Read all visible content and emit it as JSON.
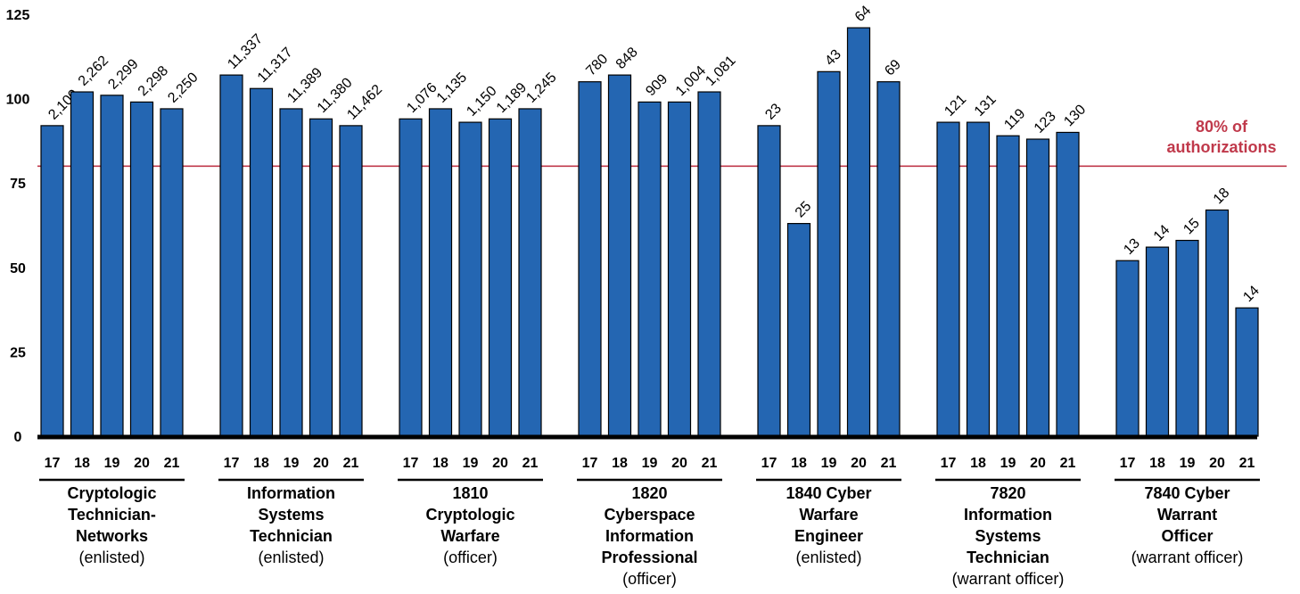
{
  "chart_data": {
    "type": "bar",
    "ylim": [
      0,
      125
    ],
    "yticks": [
      0,
      25,
      50,
      75,
      100,
      125
    ],
    "grid": false,
    "reference_line": {
      "value": 80,
      "label_lines": [
        "80% of",
        "authorizations"
      ],
      "color": "#c0394b"
    },
    "bar_color": "#2466b2",
    "groups": [
      {
        "name_lines": [
          "Cryptologic",
          "Technician-",
          "Networks"
        ],
        "sub": "(enlisted)",
        "categories": [
          "17",
          "18",
          "19",
          "20",
          "21"
        ],
        "values": [
          92,
          102,
          101,
          99,
          97
        ],
        "labels": [
          "2,100",
          "2,262",
          "2,299",
          "2,298",
          "2,250"
        ]
      },
      {
        "name_lines": [
          "Information",
          "Systems",
          "Technician"
        ],
        "sub": "(enlisted)",
        "categories": [
          "17",
          "18",
          "19",
          "20",
          "21"
        ],
        "values": [
          107,
          103,
          97,
          94,
          92
        ],
        "labels": [
          "11,337",
          "11,317",
          "11,389",
          "11,380",
          "11,462"
        ]
      },
      {
        "name_lines": [
          "1810",
          "Cryptologic",
          "Warfare"
        ],
        "sub": "(officer)",
        "categories": [
          "17",
          "18",
          "19",
          "20",
          "21"
        ],
        "values": [
          94,
          97,
          93,
          94,
          97
        ],
        "labels": [
          "1,076",
          "1,135",
          "1,150",
          "1,189",
          "1,245"
        ]
      },
      {
        "name_lines": [
          "1820",
          "Cyberspace",
          "Information",
          "Professional"
        ],
        "sub": "(officer)",
        "categories": [
          "17",
          "18",
          "19",
          "20",
          "21"
        ],
        "values": [
          105,
          107,
          99,
          99,
          102
        ],
        "labels": [
          "780",
          "848",
          "909",
          "1,004",
          "1,081"
        ]
      },
      {
        "name_lines": [
          "1840 Cyber",
          "Warfare",
          "Engineer"
        ],
        "sub": "(enlisted)",
        "categories": [
          "17",
          "18",
          "19",
          "20",
          "21"
        ],
        "values": [
          92,
          63,
          108,
          121,
          105
        ],
        "labels": [
          "23",
          "25",
          "43",
          "64",
          "69"
        ]
      },
      {
        "name_lines": [
          "7820",
          "Information",
          "Systems",
          "Technician"
        ],
        "sub": "(warrant officer)",
        "categories": [
          "17",
          "18",
          "19",
          "20",
          "21"
        ],
        "values": [
          93,
          93,
          89,
          88,
          90
        ],
        "labels": [
          "121",
          "131",
          "119",
          "123",
          "130"
        ]
      },
      {
        "name_lines": [
          "7840 Cyber",
          "Warrant",
          "Officer"
        ],
        "sub": "(warrant officer)",
        "categories": [
          "17",
          "18",
          "19",
          "20",
          "21"
        ],
        "values": [
          52,
          56,
          58,
          67,
          38
        ],
        "labels": [
          "13",
          "14",
          "15",
          "18",
          "14"
        ]
      }
    ]
  }
}
